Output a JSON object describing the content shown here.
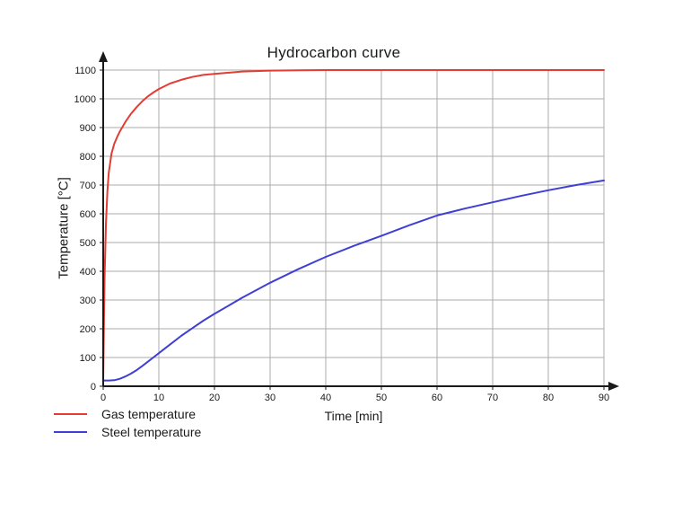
{
  "colors": {
    "background": "#ffffff",
    "grid": "#ababab",
    "axis": "#1a1a1a",
    "text": "#1a1a1a",
    "gas_line": "#e23d33",
    "steel_line": "#3f3fd6"
  },
  "chart_data": {
    "type": "line",
    "title": "Hydrocarbon curve",
    "xlabel": "Time [min]",
    "ylabel": "Temperature [°C]",
    "xlim": [
      0,
      90
    ],
    "ylim": [
      0,
      1100
    ],
    "x_ticks": [
      0,
      10,
      20,
      30,
      40,
      50,
      60,
      70,
      80,
      90
    ],
    "y_ticks": [
      0,
      100,
      200,
      300,
      400,
      500,
      600,
      700,
      800,
      900,
      1000,
      1100
    ],
    "grid": true,
    "legend_position": "bottom-left",
    "series": [
      {
        "name": "Gas temperature",
        "color": "#e23d33",
        "x": [
          0,
          0.25,
          0.5,
          0.75,
          1,
          1.5,
          2,
          2.5,
          3,
          4,
          5,
          6,
          7,
          8,
          9,
          10,
          12,
          14,
          16,
          18,
          20,
          25,
          30,
          35,
          40,
          50,
          60,
          70,
          80,
          90
        ],
        "y": [
          20,
          373,
          568,
          679,
          743,
          810,
          844,
          867,
          887,
          920,
          948,
          971,
          991,
          1008,
          1022,
          1034,
          1053,
          1066,
          1076,
          1083,
          1087,
          1095,
          1098,
          1099,
          1100,
          1100,
          1100,
          1100,
          1100,
          1100
        ]
      },
      {
        "name": "Steel temperature",
        "color": "#3f3fd6",
        "x": [
          0,
          1,
          2,
          3,
          4,
          5,
          6,
          7,
          8,
          9,
          10,
          12,
          14,
          16,
          18,
          20,
          25,
          30,
          35,
          40,
          45,
          50,
          55,
          60,
          65,
          70,
          75,
          80,
          85,
          90
        ],
        "y": [
          20,
          20,
          21,
          26,
          34,
          44,
          56,
          70,
          85,
          100,
          115,
          145,
          175,
          202,
          228,
          252,
          308,
          360,
          407,
          450,
          488,
          523,
          560,
          594,
          618,
          640,
          662,
          682,
          700,
          716
        ]
      }
    ]
  }
}
